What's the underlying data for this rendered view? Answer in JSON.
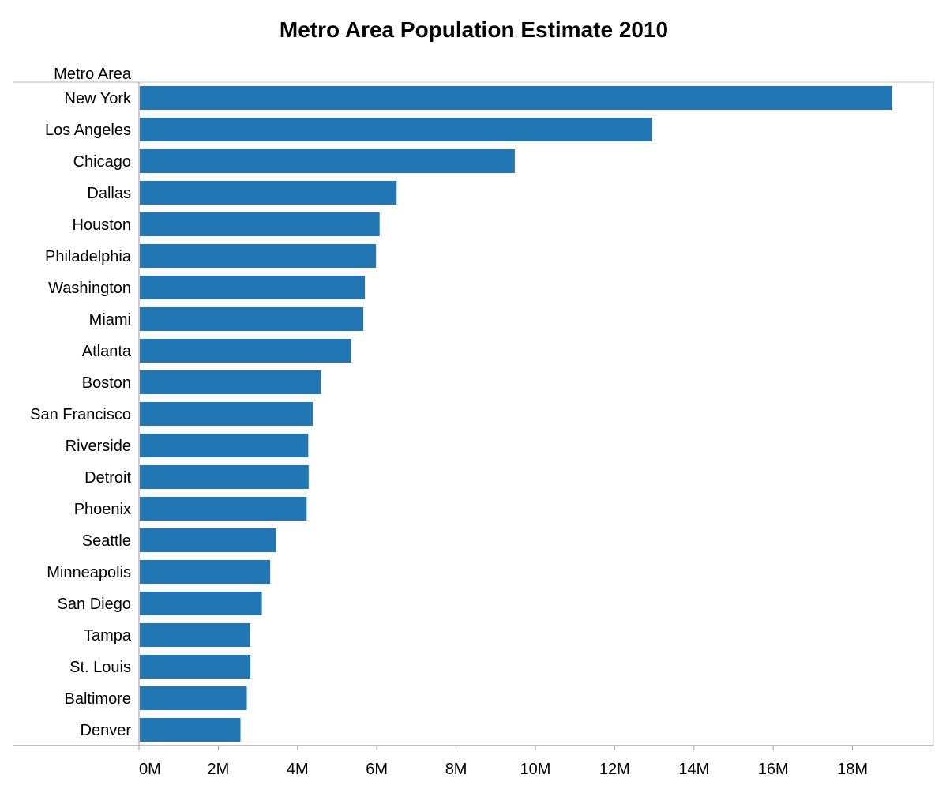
{
  "chart_data": {
    "type": "bar",
    "orientation": "horizontal",
    "title": "Metro Area Population Estimate 2010",
    "row_header": "Metro Area",
    "xlabel": "",
    "ylabel": "Metro Area",
    "xlim": [
      0,
      19500000
    ],
    "grid": false,
    "color": "#2077b4",
    "x_ticks": [
      {
        "value": 0,
        "label": "0M"
      },
      {
        "value": 2000000,
        "label": "2M"
      },
      {
        "value": 4000000,
        "label": "4M"
      },
      {
        "value": 6000000,
        "label": "6M"
      },
      {
        "value": 8000000,
        "label": "8M"
      },
      {
        "value": 10000000,
        "label": "10M"
      },
      {
        "value": 12000000,
        "label": "12M"
      },
      {
        "value": 14000000,
        "label": "14M"
      },
      {
        "value": 16000000,
        "label": "16M"
      },
      {
        "value": 18000000,
        "label": "18M"
      }
    ],
    "categories": [
      "New York",
      "Los Angeles",
      "Chicago",
      "Dallas",
      "Houston",
      "Philadelphia",
      "Washington",
      "Miami",
      "Atlanta",
      "Boston",
      "San Francisco",
      "Riverside",
      "Detroit",
      "Phoenix",
      "Seattle",
      "Minneapolis",
      "San Diego",
      "Tampa",
      "St. Louis",
      "Baltimore",
      "Denver"
    ],
    "values": [
      19000000,
      12950000,
      9480000,
      6500000,
      6070000,
      5980000,
      5700000,
      5660000,
      5350000,
      4590000,
      4390000,
      4270000,
      4280000,
      4230000,
      3450000,
      3310000,
      3100000,
      2800000,
      2810000,
      2720000,
      2560000
    ]
  }
}
